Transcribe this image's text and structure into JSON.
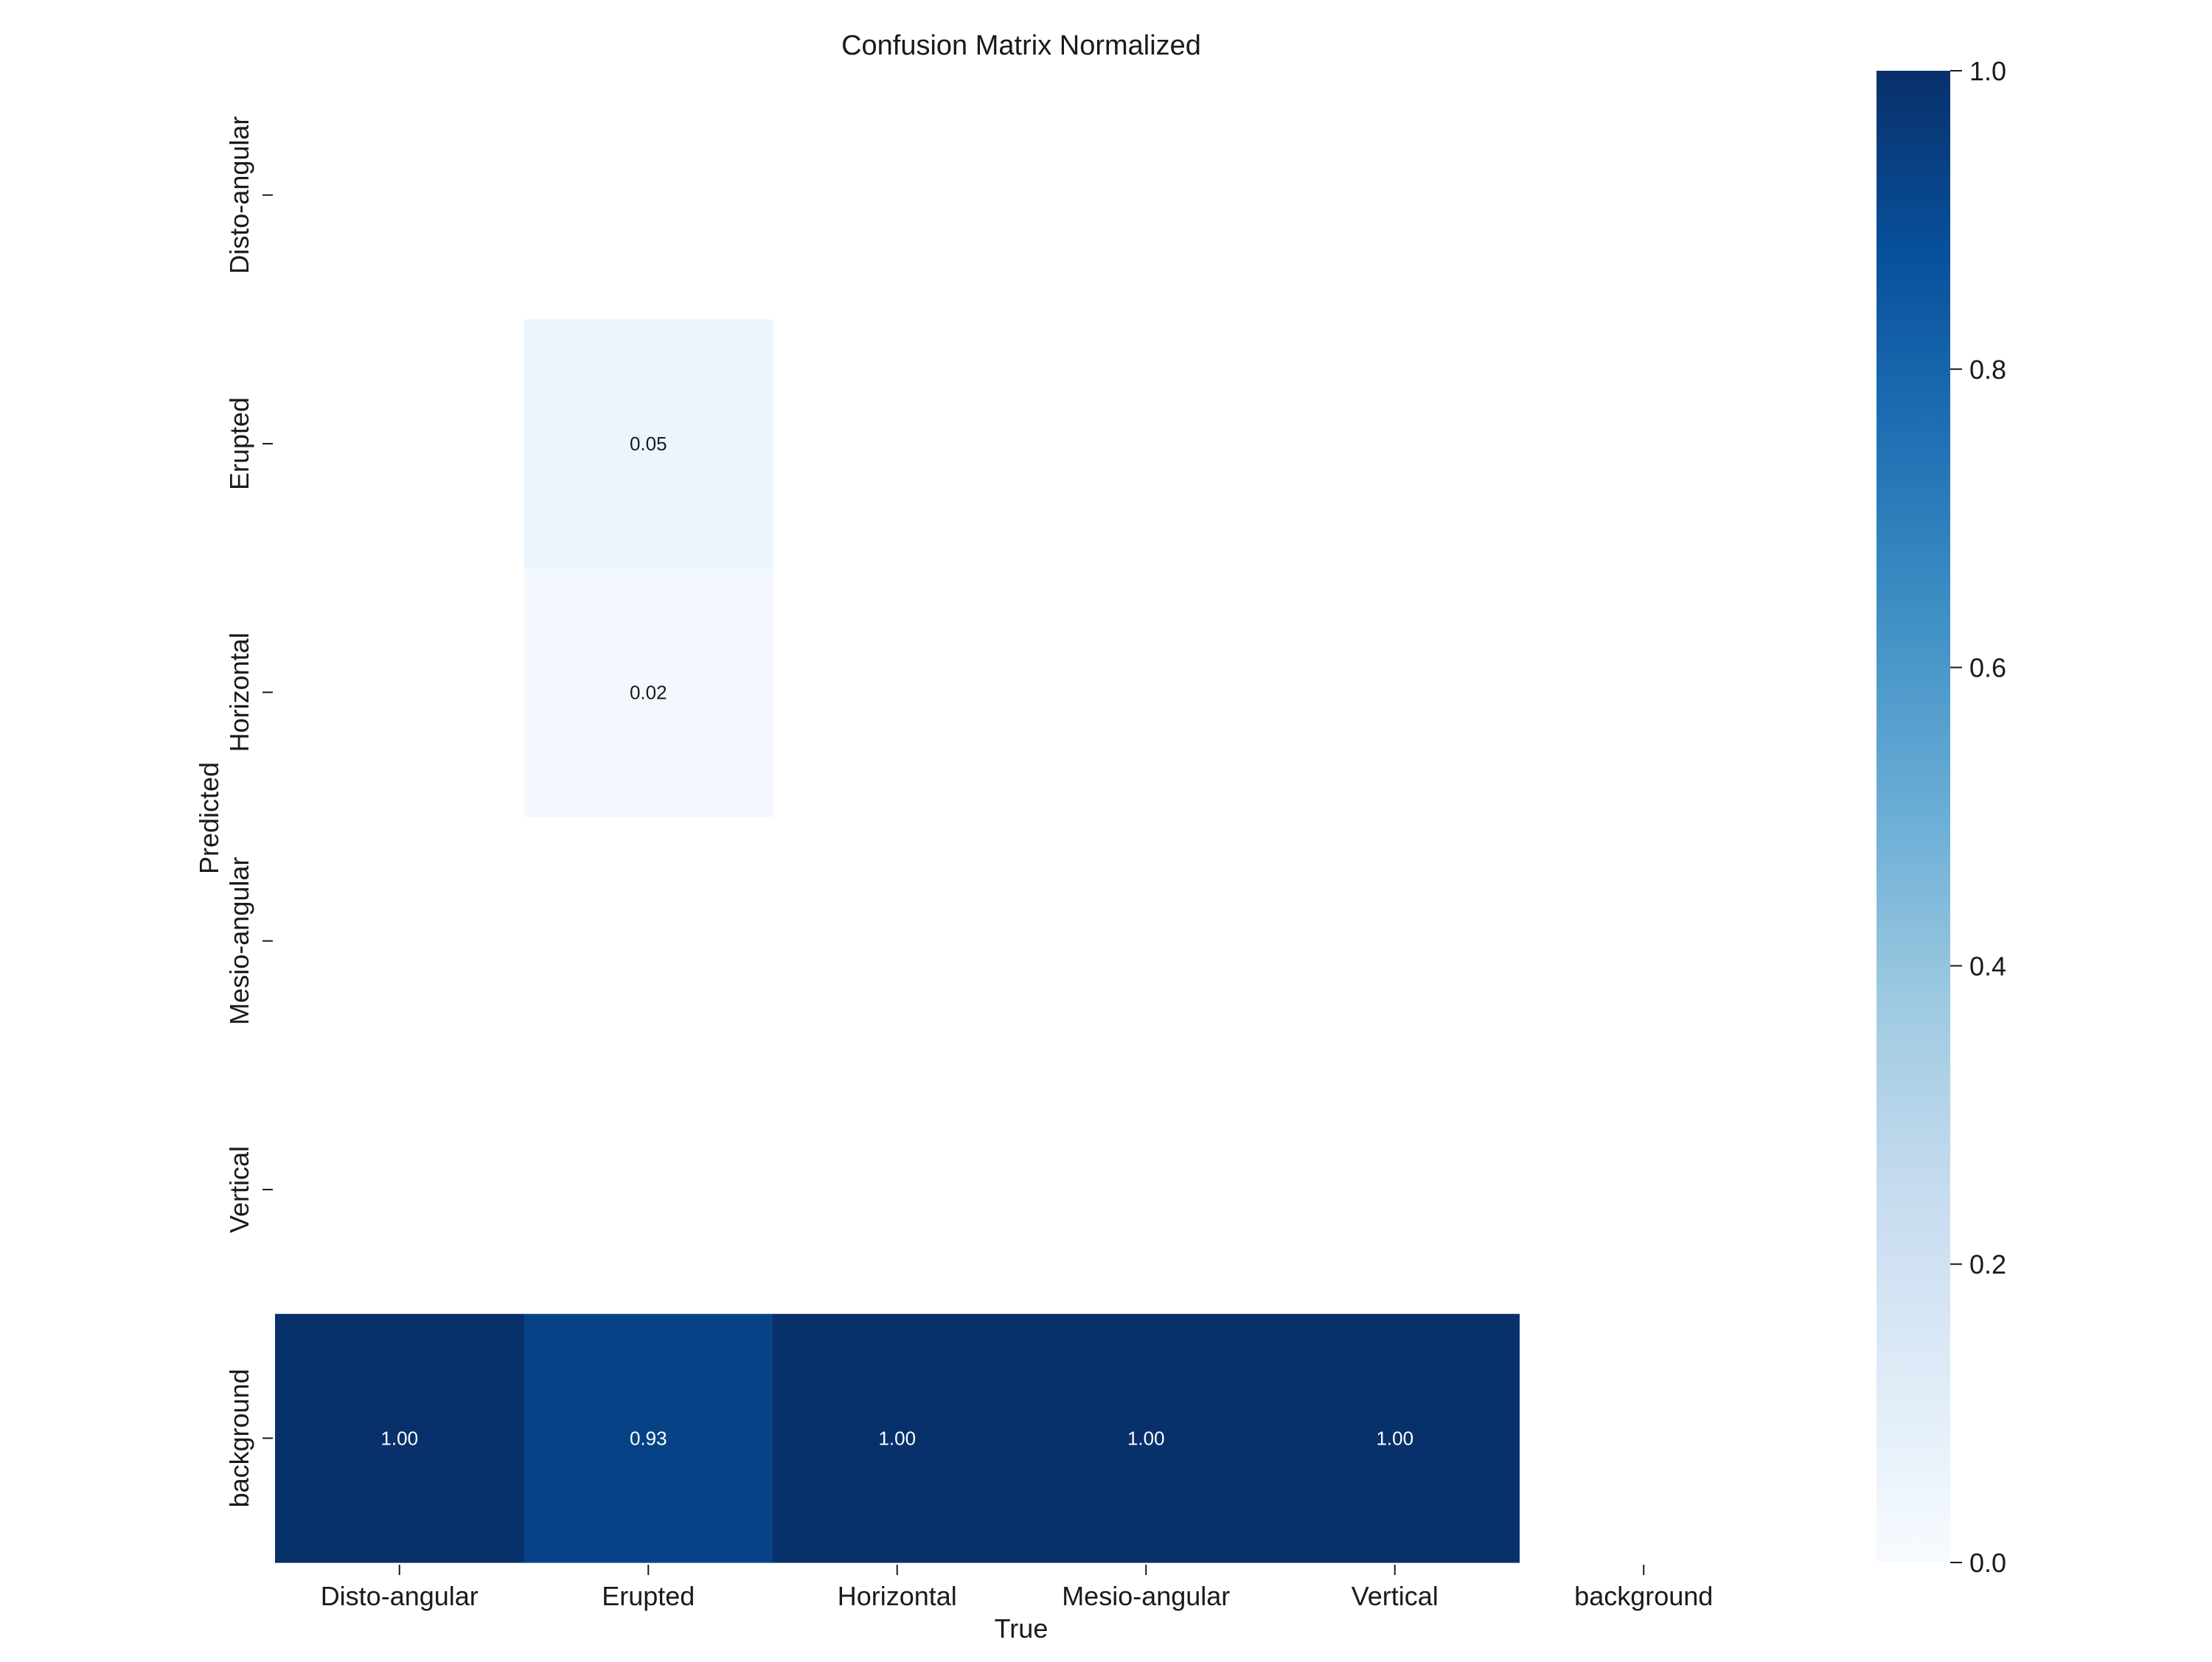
{
  "chart_data": {
    "type": "heatmap",
    "title": "Confusion Matrix Normalized",
    "xlabel": "True",
    "ylabel": "Predicted",
    "x_categories": [
      "Disto-angular",
      "Erupted",
      "Horizontal",
      "Mesio-angular",
      "Vertical",
      "background"
    ],
    "y_categories": [
      "Disto-angular",
      "Erupted",
      "Horizontal",
      "Mesio-angular",
      "Vertical",
      "background"
    ],
    "values": [
      [
        null,
        null,
        null,
        null,
        null,
        null
      ],
      [
        null,
        0.05,
        null,
        null,
        null,
        null
      ],
      [
        null,
        0.02,
        null,
        null,
        null,
        null
      ],
      [
        null,
        null,
        null,
        null,
        null,
        null
      ],
      [
        null,
        null,
        null,
        null,
        null,
        null
      ],
      [
        1.0,
        0.93,
        1.0,
        1.0,
        1.0,
        null
      ]
    ],
    "value_labels": [
      [
        "",
        "",
        "",
        "",
        "",
        ""
      ],
      [
        "",
        "0.05",
        "",
        "",
        "",
        ""
      ],
      [
        "",
        "0.02",
        "",
        "",
        "",
        ""
      ],
      [
        "",
        "",
        "",
        "",
        "",
        ""
      ],
      [
        "",
        "",
        "",
        "",
        "",
        ""
      ],
      [
        "1.00",
        "0.93",
        "1.00",
        "1.00",
        "1.00",
        ""
      ]
    ],
    "colorbar": {
      "colormap": "Blues",
      "range": [
        0.0,
        1.0
      ],
      "ticks": [
        0.0,
        0.2,
        0.4,
        0.6,
        0.8,
        1.0
      ],
      "tick_labels": [
        "0.0",
        "0.2",
        "0.4",
        "0.6",
        "0.8",
        "1.0"
      ]
    },
    "grid": false,
    "legend": "colorbar-right"
  }
}
